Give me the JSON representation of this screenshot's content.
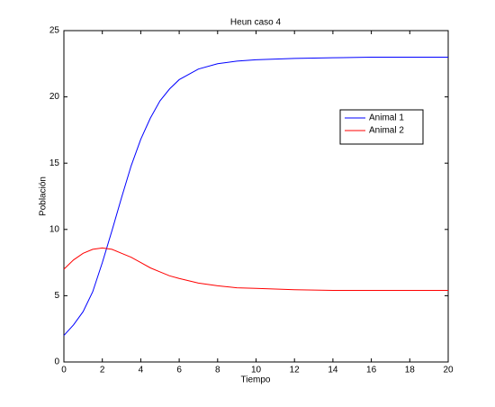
{
  "chart_data": {
    "type": "line",
    "title": "Heun caso 4",
    "xlabel": "Tiempo",
    "ylabel": "Población",
    "x": [
      0,
      0.5,
      1,
      1.5,
      2,
      2.5,
      3,
      3.5,
      4,
      4.5,
      5,
      5.5,
      6,
      7,
      8,
      9,
      10,
      12,
      14,
      16,
      18,
      20
    ],
    "series": [
      {
        "name": "Animal 1",
        "color": "#0000ff",
        "values": [
          2.0,
          2.8,
          3.8,
          5.3,
          7.5,
          9.9,
          12.4,
          14.8,
          16.8,
          18.4,
          19.7,
          20.6,
          21.3,
          22.1,
          22.5,
          22.7,
          22.8,
          22.9,
          22.95,
          23,
          23,
          23
        ]
      },
      {
        "name": "Animal 2",
        "color": "#ff0000",
        "values": [
          7.0,
          7.7,
          8.2,
          8.5,
          8.6,
          8.5,
          8.2,
          7.9,
          7.5,
          7.1,
          6.8,
          6.5,
          6.3,
          5.95,
          5.75,
          5.6,
          5.55,
          5.45,
          5.4,
          5.4,
          5.4,
          5.4
        ]
      }
    ],
    "xlim": [
      0,
      20
    ],
    "ylim": [
      0,
      25
    ],
    "xticks": [
      0,
      2,
      4,
      6,
      8,
      10,
      12,
      14,
      16,
      18,
      20
    ],
    "yticks": [
      0,
      5,
      10,
      15,
      20,
      25
    ],
    "legend": "upper right"
  }
}
